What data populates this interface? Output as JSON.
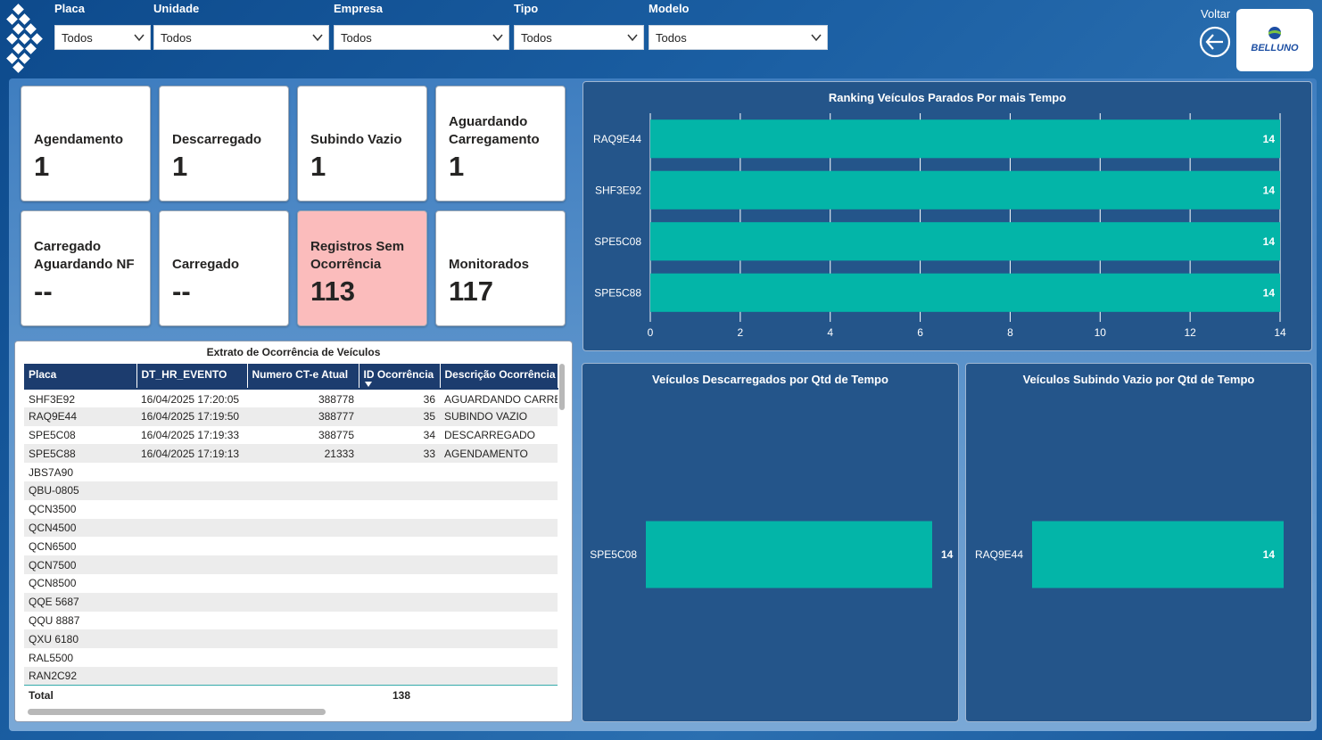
{
  "filters": [
    {
      "label": "Placa",
      "value": "Todos"
    },
    {
      "label": "Unidade",
      "value": "Todos"
    },
    {
      "label": "Empresa",
      "value": "Todos"
    },
    {
      "label": "Tipo",
      "value": "Todos"
    },
    {
      "label": "Modelo",
      "value": "Todos"
    }
  ],
  "voltar_label": "Voltar",
  "brand_name": "BELLUNO",
  "kpis": [
    {
      "title": "Agendamento",
      "value": "1"
    },
    {
      "title": "Descarregado",
      "value": "1"
    },
    {
      "title": "Subindo Vazio",
      "value": "1"
    },
    {
      "title": "Aguardando Carregamento",
      "value": "1"
    },
    {
      "title": "Carregado Aguardando NF",
      "value": "--"
    },
    {
      "title": "Carregado",
      "value": "--"
    },
    {
      "title": "Registros Sem Ocorrência",
      "value": "113"
    },
    {
      "title": "Monitorados",
      "value": "117"
    }
  ],
  "colors": {
    "alert_card": "#fbbcbc",
    "bar": "#03b5a8",
    "header": "#1c3c6e",
    "chart_bg": "#24558a"
  },
  "table": {
    "title": "Extrato de Ocorrência de Veículos",
    "columns": [
      "Placa",
      "DT_HR_EVENTO",
      "Numero CT-e Atual",
      "ID Ocorrência",
      "Descrição Ocorrência"
    ],
    "rows": [
      [
        "SHF3E92",
        "16/04/2025 17:20:05",
        "388778",
        "36",
        "AGUARDANDO CARREGAMENTO"
      ],
      [
        "RAQ9E44",
        "16/04/2025 17:19:50",
        "388777",
        "35",
        "SUBINDO VAZIO"
      ],
      [
        "SPE5C08",
        "16/04/2025 17:19:33",
        "388775",
        "34",
        "DESCARREGADO"
      ],
      [
        "SPE5C88",
        "16/04/2025 17:19:13",
        "21333",
        "33",
        "AGENDAMENTO"
      ],
      [
        "JBS7A90",
        "",
        "",
        "",
        ""
      ],
      [
        "QBU-0805",
        "",
        "",
        "",
        ""
      ],
      [
        "QCN3500",
        "",
        "",
        "",
        ""
      ],
      [
        "QCN4500",
        "",
        "",
        "",
        ""
      ],
      [
        "QCN6500",
        "",
        "",
        "",
        ""
      ],
      [
        "QCN7500",
        "",
        "",
        "",
        ""
      ],
      [
        "QCN8500",
        "",
        "",
        "",
        ""
      ],
      [
        "QQE 5687",
        "",
        "",
        "",
        ""
      ],
      [
        "QQU 8887",
        "",
        "",
        "",
        ""
      ],
      [
        "QXU 6180",
        "",
        "",
        "",
        ""
      ],
      [
        "RAL5500",
        "",
        "",
        "",
        ""
      ],
      [
        "RAN2C92",
        "",
        "",
        "",
        ""
      ]
    ],
    "total_label": "Total",
    "total_value": "138"
  },
  "chart_data": [
    {
      "type": "bar",
      "orientation": "horizontal",
      "title": "Ranking Veículos Parados Por mais Tempo",
      "categories": [
        "RAQ9E44",
        "SHF3E92",
        "SPE5C08",
        "SPE5C88"
      ],
      "values": [
        14,
        14,
        14,
        14
      ],
      "xlim": [
        0,
        14
      ],
      "xticks": [
        0,
        2,
        4,
        6,
        8,
        10,
        12,
        14
      ],
      "grid": true
    },
    {
      "type": "bar",
      "orientation": "horizontal",
      "title": "Veículos Descarregados por Qtd de Tempo",
      "categories": [
        "SPE5C08"
      ],
      "values": [
        14
      ],
      "label_position": "outside"
    },
    {
      "type": "bar",
      "orientation": "horizontal",
      "title": "Veículos Subindo Vazio por Qtd de Tempo",
      "categories": [
        "RAQ9E44"
      ],
      "values": [
        14
      ],
      "label_position": "inside"
    }
  ]
}
